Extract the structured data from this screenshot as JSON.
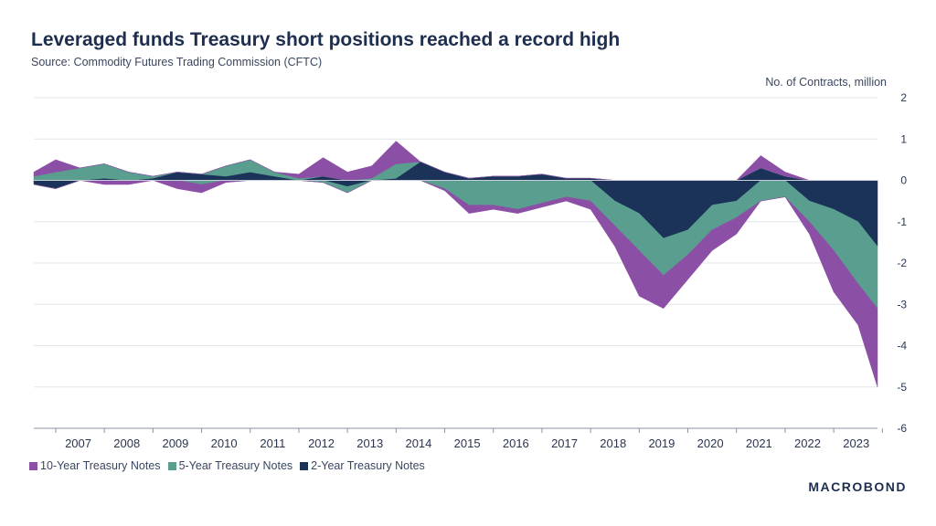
{
  "header": {
    "title": "Leveraged funds Treasury short positions reached a record high",
    "source": "Source: Commodity Futures Trading Commission (CFTC)"
  },
  "branding": {
    "logo_text": "MACROBOND"
  },
  "chart_data": {
    "type": "area",
    "title": "Leveraged funds Treasury short positions reached a record high",
    "ylabel": "No. of Contracts, million",
    "xlabel": "",
    "ylim": [
      -6,
      2
    ],
    "yticks": [
      2,
      1,
      0,
      -1,
      -2,
      -3,
      -4,
      -5,
      -6
    ],
    "xlim": [
      2006.55,
      2023.9
    ],
    "categories": [
      "2007",
      "2008",
      "2009",
      "2010",
      "2011",
      "2012",
      "2013",
      "2014",
      "2015",
      "2016",
      "2017",
      "2018",
      "2019",
      "2020",
      "2021",
      "2022",
      "2023"
    ],
    "stacked": true,
    "grid": true,
    "legend_position": "bottom-left",
    "x": [
      2006.55,
      2007.0,
      2007.5,
      2008.0,
      2008.5,
      2009.0,
      2009.5,
      2010.0,
      2010.5,
      2011.0,
      2011.5,
      2012.0,
      2012.5,
      2013.0,
      2013.5,
      2014.0,
      2014.5,
      2015.0,
      2015.5,
      2016.0,
      2016.5,
      2017.0,
      2017.5,
      2018.0,
      2018.5,
      2019.0,
      2019.5,
      2020.0,
      2020.5,
      2021.0,
      2021.5,
      2022.0,
      2022.5,
      2023.0,
      2023.5,
      2023.9
    ],
    "series": [
      {
        "name": "2-Year Treasury Notes",
        "color": "#1b3358",
        "values": [
          -0.1,
          -0.2,
          0.0,
          0.05,
          0.0,
          0.05,
          0.2,
          0.15,
          0.1,
          0.2,
          0.1,
          0.0,
          0.1,
          -0.15,
          0.0,
          0.05,
          0.45,
          0.2,
          0.05,
          0.1,
          0.1,
          0.15,
          0.05,
          0.05,
          -0.5,
          -0.8,
          -1.4,
          -1.2,
          -0.6,
          -0.5,
          0.3,
          0.1,
          -0.5,
          -0.7,
          -1.0,
          -1.6
        ]
      },
      {
        "name": "5-Year Treasury Notes",
        "color": "#5a9e8f",
        "values": [
          0.1,
          0.2,
          0.3,
          0.35,
          0.2,
          0.05,
          0.0,
          -0.1,
          0.25,
          0.3,
          0.1,
          0.05,
          -0.05,
          -0.15,
          0.05,
          0.35,
          0.0,
          -0.2,
          -0.6,
          -0.6,
          -0.7,
          -0.55,
          -0.4,
          -0.5,
          -0.6,
          -0.9,
          -0.9,
          -0.6,
          -0.6,
          -0.4,
          -0.5,
          -0.4,
          -0.5,
          -1.0,
          -1.5,
          -1.5
        ]
      },
      {
        "name": "10-Year Treasury Notes",
        "color": "#8c4fa6",
        "values": [
          0.1,
          0.3,
          0.0,
          -0.1,
          -0.1,
          0.0,
          -0.2,
          -0.2,
          -0.05,
          0.0,
          0.0,
          0.1,
          0.45,
          0.2,
          0.3,
          0.55,
          0.0,
          -0.05,
          -0.2,
          -0.1,
          -0.1,
          -0.1,
          -0.1,
          -0.2,
          -0.5,
          -1.1,
          -0.8,
          -0.6,
          -0.5,
          -0.4,
          0.3,
          0.1,
          -0.3,
          -1.0,
          -1.0,
          -1.9
        ]
      }
    ]
  }
}
